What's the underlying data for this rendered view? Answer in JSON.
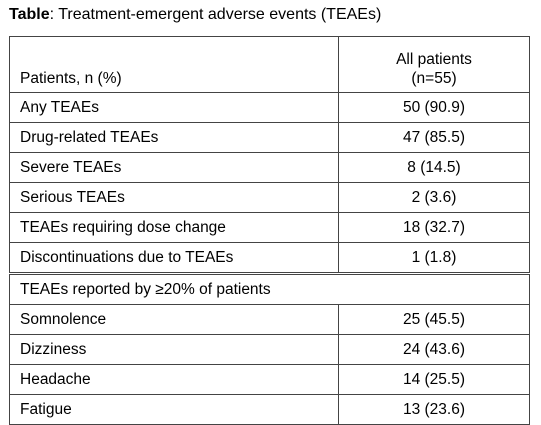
{
  "title": {
    "label": "Table",
    "text": ": Treatment-emergent adverse events (TEAEs)"
  },
  "table": {
    "header": {
      "row_label": "Patients, n (%)",
      "column": [
        "All patients",
        "(n=55)"
      ]
    },
    "rows": [
      [
        "Any TEAEs",
        "50 (90.9)"
      ],
      [
        "Drug-related TEAEs",
        "47 (85.5)"
      ],
      [
        "Severe TEAEs",
        "8 (14.5)"
      ],
      [
        "Serious TEAEs",
        "2 (3.6)"
      ],
      [
        "TEAEs requiring dose change",
        "18 (32.7)"
      ],
      [
        "Discontinuations due to TEAEs",
        "1 (1.8)"
      ]
    ],
    "section": "TEAEs reported by ≥20% of patients",
    "section_rows": [
      [
        "Somnolence",
        "25 (45.5)"
      ],
      [
        "Dizziness",
        "24 (43.6)"
      ],
      [
        "Headache",
        "14 (25.5)"
      ],
      [
        "Fatigue",
        "13 (23.6)"
      ]
    ]
  }
}
